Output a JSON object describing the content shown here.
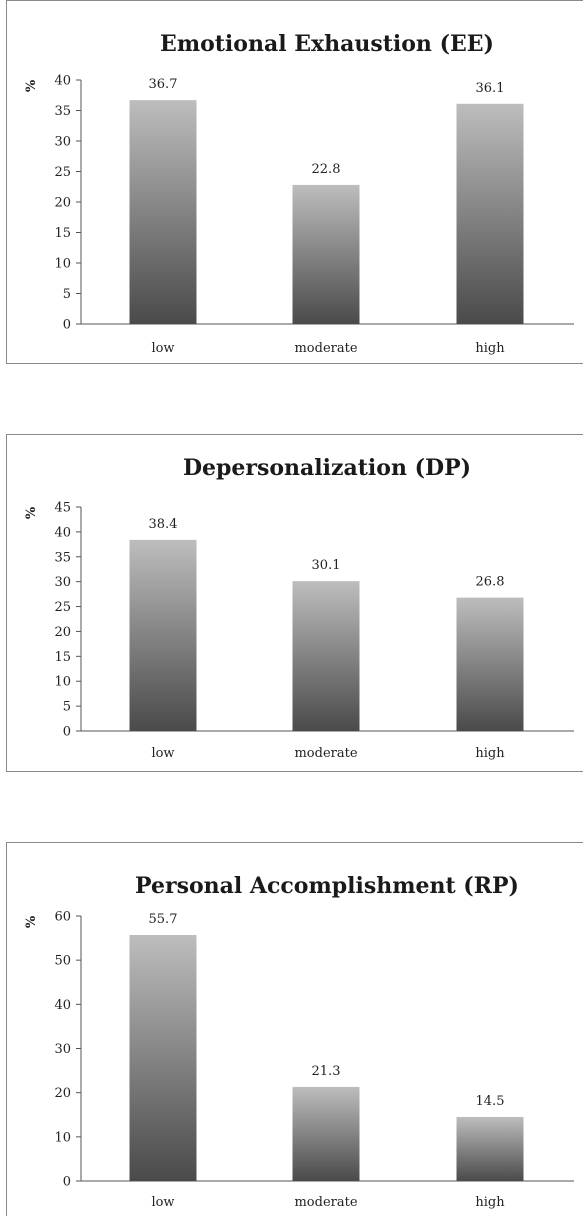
{
  "chart_data": [
    {
      "type": "bar",
      "title": "Emotional Exhaustion (EE)",
      "ylabel": "%",
      "xlabel": "",
      "categories": [
        "low",
        "moderate",
        "high"
      ],
      "values": [
        36.7,
        22.8,
        36.1
      ],
      "value_labels": [
        "36.7",
        "22.8",
        "36.1"
      ],
      "ylim": [
        0,
        40
      ],
      "yticks": [
        0,
        5,
        10,
        15,
        20,
        25,
        30,
        35,
        40
      ],
      "grid": false,
      "legend": "none"
    },
    {
      "type": "bar",
      "title": "Depersonalization (DP)",
      "ylabel": "%",
      "xlabel": "",
      "categories": [
        "low",
        "moderate",
        "high"
      ],
      "values": [
        38.4,
        30.1,
        26.8
      ],
      "value_labels": [
        "38.4",
        "30.1",
        "26.8"
      ],
      "ylim": [
        0,
        45
      ],
      "yticks": [
        0,
        5,
        10,
        15,
        20,
        25,
        30,
        35,
        40,
        45
      ],
      "grid": false,
      "legend": "none"
    },
    {
      "type": "bar",
      "title": "Personal Accomplishment (RP)",
      "ylabel": "%",
      "xlabel": "",
      "categories": [
        "low",
        "moderate",
        "high"
      ],
      "values": [
        55.7,
        21.3,
        14.5
      ],
      "value_labels": [
        "55.7",
        "21.3",
        "14.5"
      ],
      "ylim": [
        0,
        60
      ],
      "yticks": [
        0,
        10,
        20,
        30,
        40,
        50,
        60
      ],
      "grid": false,
      "legend": "none"
    }
  ],
  "colors": {
    "bar_top": "#bdbdbd",
    "bar_bottom": "#4a4a4a",
    "axis": "#555555",
    "text": "#222222"
  }
}
